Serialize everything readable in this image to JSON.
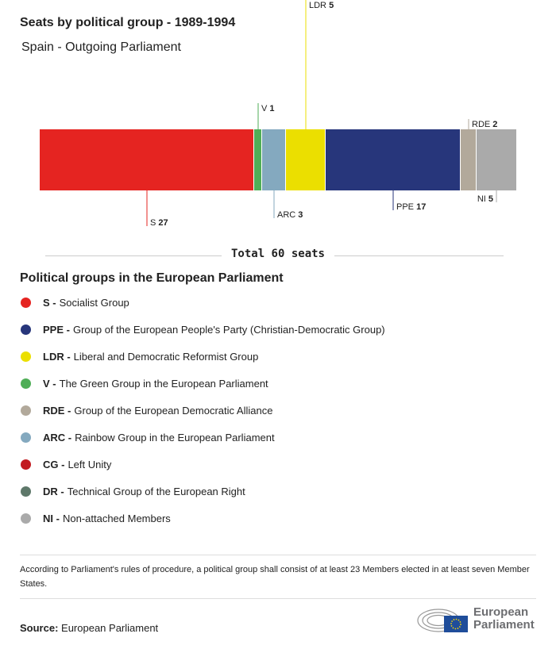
{
  "title": "Seats by political group - 1989-1994",
  "subtitle": "Spain - Outgoing Parliament",
  "chart_data": {
    "type": "stacked-bar",
    "title": "Seats by political group - 1989-1994",
    "subtitle": "Spain - Outgoing Parliament",
    "categories": [
      "S",
      "V",
      "ARC",
      "LDR",
      "PPE",
      "RDE",
      "NI"
    ],
    "values": [
      27,
      1,
      3,
      5,
      17,
      2,
      5
    ],
    "colors": [
      "#e52421",
      "#4fae57",
      "#84a9bf",
      "#ebdf00",
      "#27367b",
      "#b2a99b",
      "#aaaaaa"
    ],
    "label_side": [
      "below",
      "above",
      "below",
      "above",
      "below",
      "above",
      "below"
    ],
    "total": 60
  },
  "total_label": "Total 60 seats",
  "legend_title": "Political groups in the European Parliament",
  "legend": [
    {
      "code": "S -",
      "name": "Socialist Group",
      "color": "#e52421"
    },
    {
      "code": "PPE -",
      "name": "Group of the European People's Party (Christian-Democratic Group)",
      "color": "#27367b"
    },
    {
      "code": "LDR -",
      "name": "Liberal and Democratic Reformist Group",
      "color": "#ebdf00"
    },
    {
      "code": "V -",
      "name": "The Green Group in the European Parliament",
      "color": "#4fae57"
    },
    {
      "code": "RDE -",
      "name": "Group of the European Democratic Alliance",
      "color": "#b2a99b"
    },
    {
      "code": "ARC -",
      "name": "Rainbow Group in the European Parliament",
      "color": "#84a9bf"
    },
    {
      "code": "CG -",
      "name": "Left Unity",
      "color": "#c21b20"
    },
    {
      "code": "DR -",
      "name": "Technical Group of the European Right",
      "color": "#5e786a"
    },
    {
      "code": "NI -",
      "name": "Non-attached Members",
      "color": "#aaaaaa"
    }
  ],
  "note": "According to Parliament's rules of procedure, a political group shall consist of at least 23 Members elected in at least seven Member States.",
  "source_label": "Source:",
  "source_value": "European Parliament",
  "logo": {
    "line1": "European",
    "line2": "Parliament"
  }
}
